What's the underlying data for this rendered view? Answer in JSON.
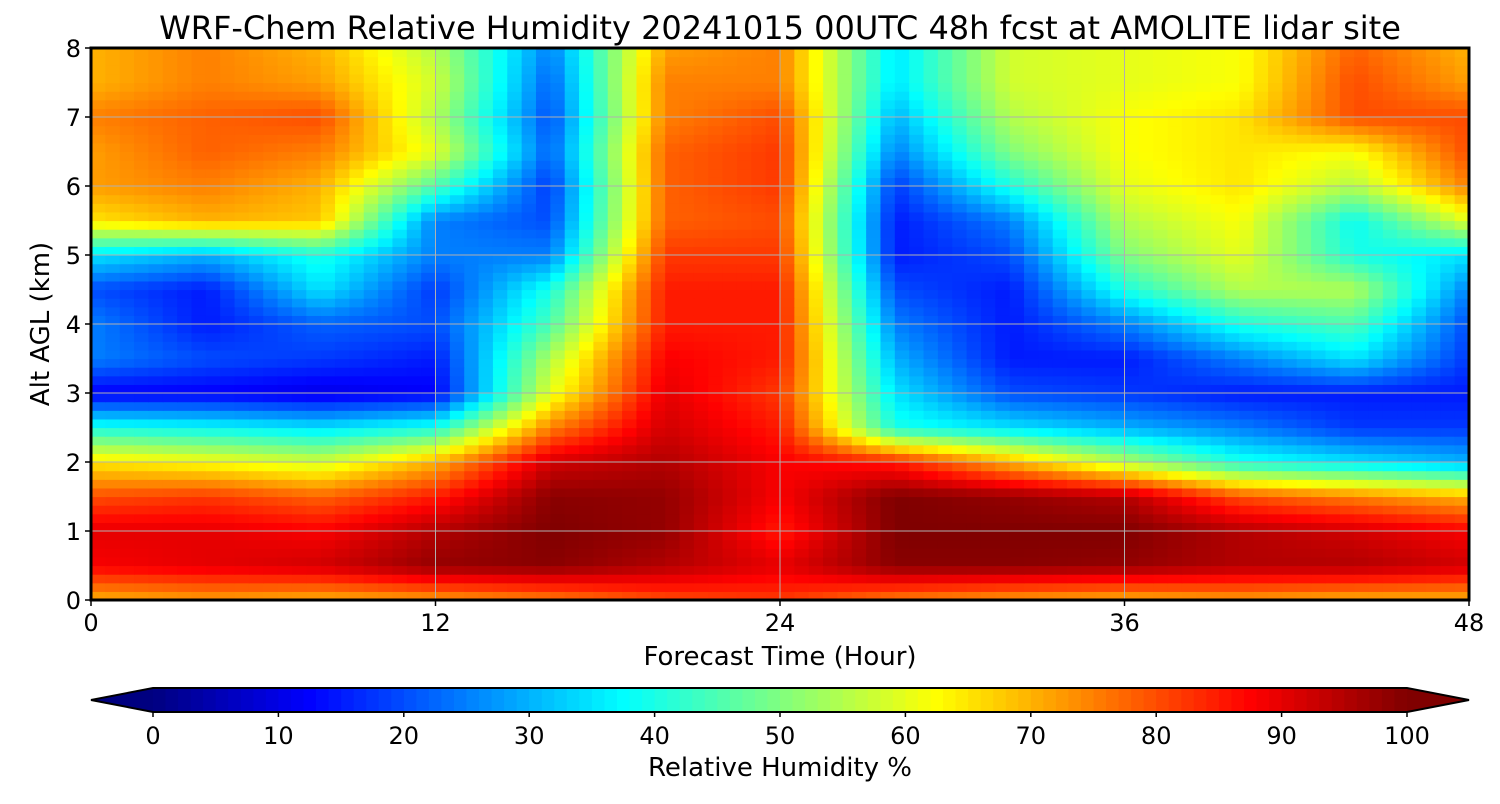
{
  "chart_data": {
    "type": "heatmap",
    "title": "WRF-Chem Relative Humidity 20241015 00UTC 48h fcst at AMOLITE lidar site",
    "xlabel": "Forecast Time (Hour)",
    "ylabel": "Alt AGL (km)",
    "xlim": [
      0,
      48
    ],
    "ylim": [
      0,
      8
    ],
    "xticks": [
      "0",
      "12",
      "24",
      "36",
      "48"
    ],
    "yticks": [
      "0",
      "1",
      "2",
      "3",
      "4",
      "5",
      "6",
      "7",
      "8"
    ],
    "grid": true,
    "colormap": "jet",
    "colorbar": {
      "label": "Relative Humidity %",
      "range": [
        0,
        100
      ],
      "ticks": [
        "0",
        "10",
        "20",
        "30",
        "40",
        "50",
        "60",
        "70",
        "80",
        "90",
        "100"
      ],
      "orientation": "horizontal",
      "extend": "both"
    },
    "x": [
      0,
      4,
      8,
      12,
      16,
      20,
      24,
      28,
      32,
      36,
      40,
      44,
      48
    ],
    "y": [
      0,
      0.5,
      1,
      1.5,
      2,
      2.5,
      3,
      3.5,
      4,
      4.5,
      5,
      5.5,
      6,
      6.5,
      7,
      7.5,
      8
    ],
    "z_rows": [
      [
        70,
        72,
        70,
        72,
        75,
        80,
        82,
        75,
        72,
        70,
        72,
        70,
        70
      ],
      [
        88,
        90,
        92,
        98,
        99,
        95,
        90,
        99,
        99,
        98,
        95,
        95,
        92
      ],
      [
        90,
        90,
        88,
        95,
        100,
        98,
        85,
        100,
        100,
        100,
        95,
        92,
        88
      ],
      [
        80,
        82,
        78,
        85,
        99,
        98,
        88,
        100,
        98,
        95,
        80,
        75,
        70
      ],
      [
        65,
        62,
        58,
        70,
        92,
        95,
        88,
        85,
        70,
        55,
        40,
        35,
        30
      ],
      [
        40,
        38,
        35,
        40,
        75,
        92,
        85,
        40,
        35,
        30,
        25,
        18,
        18
      ],
      [
        12,
        12,
        10,
        12,
        60,
        90,
        82,
        35,
        20,
        18,
        15,
        15,
        15
      ],
      [
        25,
        20,
        18,
        15,
        55,
        88,
        85,
        30,
        15,
        15,
        25,
        35,
        18
      ],
      [
        25,
        15,
        22,
        20,
        45,
        85,
        85,
        25,
        15,
        25,
        40,
        45,
        20
      ],
      [
        20,
        15,
        35,
        18,
        40,
        85,
        85,
        20,
        15,
        40,
        55,
        55,
        25
      ],
      [
        35,
        30,
        40,
        25,
        25,
        82,
        82,
        15,
        20,
        50,
        60,
        40,
        35
      ],
      [
        65,
        70,
        68,
        25,
        20,
        78,
        80,
        15,
        25,
        55,
        62,
        38,
        60
      ],
      [
        72,
        75,
        70,
        45,
        18,
        78,
        82,
        18,
        40,
        60,
        65,
        55,
        75
      ],
      [
        72,
        78,
        75,
        60,
        22,
        78,
        82,
        25,
        50,
        62,
        65,
        62,
        80
      ],
      [
        75,
        78,
        80,
        55,
        20,
        75,
        80,
        30,
        55,
        62,
        65,
        80,
        80
      ],
      [
        70,
        75,
        72,
        58,
        22,
        75,
        75,
        35,
        58,
        60,
        62,
        80,
        72
      ],
      [
        70,
        75,
        70,
        55,
        25,
        72,
        75,
        35,
        58,
        60,
        62,
        78,
        70
      ]
    ]
  }
}
